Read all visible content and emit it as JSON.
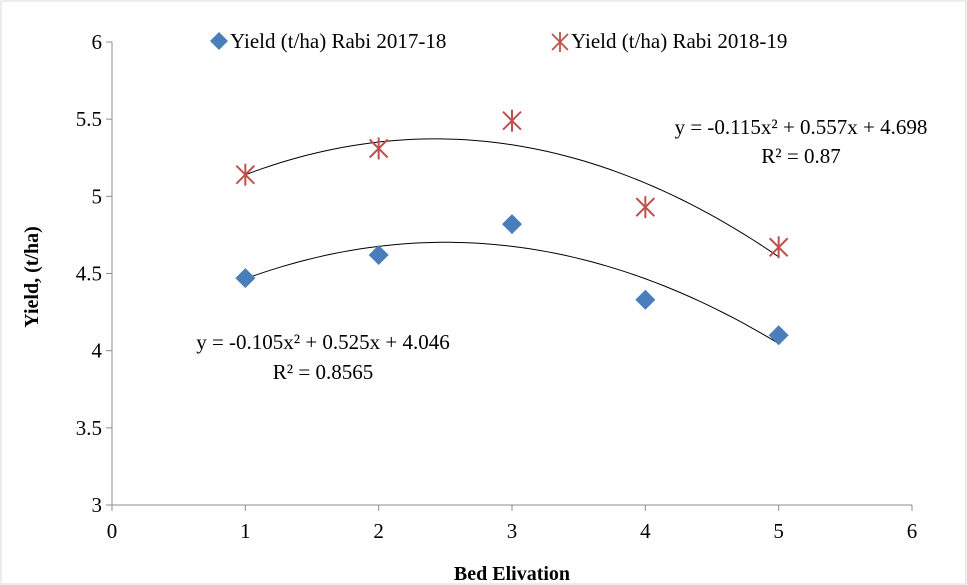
{
  "chart_data": {
    "type": "scatter",
    "xlabel": "Bed Elivation",
    "ylabel": "Yield, (t/ha)",
    "xlim": [
      0,
      6
    ],
    "ylim": [
      3,
      6
    ],
    "x_ticks": [
      0,
      1,
      2,
      3,
      4,
      5,
      6
    ],
    "y_ticks": [
      3,
      3.5,
      4,
      4.5,
      5,
      5.5,
      6
    ],
    "x_tick_labels": [
      "0",
      "1",
      "2",
      "3",
      "4",
      "5",
      "6"
    ],
    "y_tick_labels": [
      "3",
      "3.5",
      "4",
      "4.5",
      "5",
      "5.5",
      "6"
    ],
    "grid": false,
    "legend_position": "top",
    "series": [
      {
        "name": "Yield (t/ha) Rabi 2017-18",
        "marker": "diamond",
        "color": "#4a7ebb",
        "x": [
          1,
          2,
          3,
          4,
          5
        ],
        "y": [
          4.47,
          4.62,
          4.82,
          4.33,
          4.1
        ],
        "trendline": {
          "type": "polynomial",
          "coefficients": [
            -0.105,
            0.525,
            4.046
          ],
          "equation": "y = -0.105x² + 0.525x + 4.046",
          "r2": "R² = 0.8565"
        }
      },
      {
        "name": "Yield (t/ha) Rabi 2018-19",
        "marker": "star",
        "color": "#c0504d",
        "x": [
          1,
          2,
          3,
          4,
          5
        ],
        "y": [
          5.14,
          5.31,
          5.49,
          4.93,
          4.67
        ],
        "trendline": {
          "type": "polynomial",
          "coefficients": [
            -0.115,
            0.557,
            4.698
          ],
          "equation": "y = -0.115x² + 0.557x + 4.698",
          "r2": "R² = 0.87"
        }
      }
    ]
  }
}
